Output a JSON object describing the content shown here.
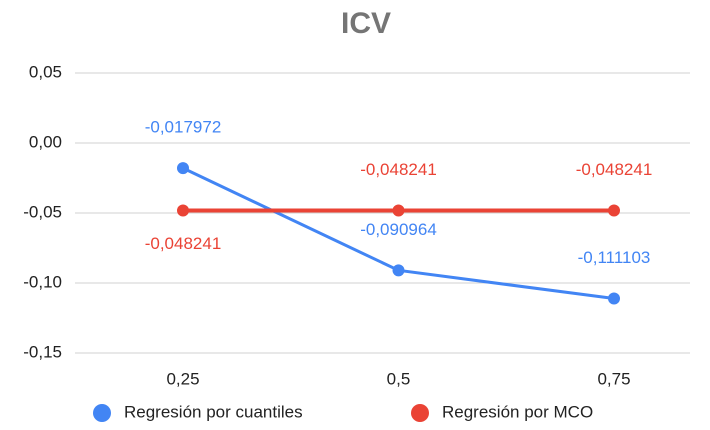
{
  "chart_data": {
    "type": "line",
    "title": "ICV",
    "categories": [
      "0,25",
      "0,5",
      "0,75"
    ],
    "series": [
      {
        "name": "Regresión por cuantiles",
        "color": "#4285f4",
        "values": [
          -0.017972,
          -0.090964,
          -0.111103
        ],
        "value_labels": [
          "-0,017972",
          "-0,090964",
          "-0,111103"
        ]
      },
      {
        "name": "Regresión por MCO",
        "color": "#ea4335",
        "values": [
          -0.048241,
          -0.048241,
          -0.048241
        ],
        "value_labels": [
          "-0,048241",
          "-0,048241",
          "-0,048241"
        ]
      }
    ],
    "ylim": [
      -0.15,
      0.05
    ],
    "yticks": [
      {
        "value": -0.15,
        "label": "-0,15"
      },
      {
        "value": -0.1,
        "label": "-0,10"
      },
      {
        "value": -0.05,
        "label": "-0,05"
      },
      {
        "value": 0,
        "label": "0,00"
      },
      {
        "value": 0.05,
        "label": "0,05"
      }
    ],
    "grid": true,
    "legend": "bottom"
  }
}
